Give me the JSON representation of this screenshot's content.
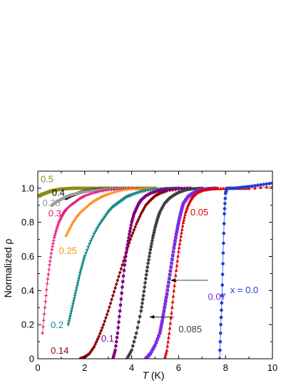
{
  "chart_data": {
    "type": "scatter",
    "xlabel_symbol": "T",
    "xlabel_unit": "(K)",
    "ylabel": "Normalized ρ",
    "xlim": [
      0,
      10
    ],
    "ylim": [
      0,
      1.1
    ],
    "xticks": [
      0,
      2,
      4,
      6,
      8,
      10
    ],
    "yticks": [
      0,
      0.2,
      0.4,
      0.6,
      0.8,
      1.0
    ],
    "xtick_labels": [
      "0",
      "2",
      "4",
      "6",
      "8",
      "10"
    ],
    "ytick_labels": [
      "0",
      "0.2",
      "0.4",
      "0.6",
      "0.8",
      "1.0"
    ],
    "grid": false,
    "series": [
      {
        "name": "0.5",
        "color": "#8b8b1a",
        "marker": "square",
        "x": [
          0.05,
          0.2,
          0.4,
          0.6,
          0.8,
          1.0,
          1.3,
          1.6,
          2.0,
          2.5,
          3.0,
          3.5,
          4.0,
          4.5,
          5.0
        ],
        "y": [
          0.955,
          0.965,
          0.975,
          0.985,
          0.99,
          0.995,
          0.998,
          1.0,
          1.0,
          1.0,
          1.0,
          1.0,
          1.0,
          1.0,
          1.0
        ]
      },
      {
        "name": "0.4",
        "color": "#000000",
        "marker": "circle",
        "x": [
          1.2,
          1.4,
          1.6,
          1.8,
          2.0,
          2.3,
          2.6,
          3.0,
          3.5,
          4.0
        ],
        "y": [
          0.94,
          0.955,
          0.965,
          0.975,
          0.982,
          0.988,
          0.992,
          0.995,
          0.998,
          1.0
        ]
      },
      {
        "name": "0.35",
        "color": "#9a9a9a",
        "marker": "circle",
        "x": [
          0.6,
          0.8,
          1.0,
          1.2,
          1.4,
          1.7,
          2.0,
          2.4,
          2.8,
          3.2,
          3.6,
          4.0
        ],
        "y": [
          0.9,
          0.92,
          0.935,
          0.95,
          0.96,
          0.97,
          0.98,
          0.987,
          0.992,
          0.996,
          0.998,
          1.0
        ]
      },
      {
        "name": "0.3",
        "color": "#e6177a",
        "marker": "plus",
        "x": [
          0.2,
          0.3,
          0.4,
          0.5,
          0.6,
          0.7,
          0.8,
          0.9,
          1.0,
          1.1,
          1.2,
          1.4,
          1.6,
          1.8,
          2.0,
          2.3,
          2.6,
          3.0,
          3.5,
          4.0,
          5.0
        ],
        "y": [
          0.15,
          0.3,
          0.44,
          0.55,
          0.64,
          0.71,
          0.76,
          0.8,
          0.83,
          0.855,
          0.875,
          0.9,
          0.92,
          0.94,
          0.955,
          0.97,
          0.98,
          0.99,
          0.995,
          1.0,
          1.0
        ]
      },
      {
        "name": "0.25",
        "color": "#ff8c1a",
        "marker": "plus",
        "x": [
          1.2,
          1.35,
          1.5,
          1.65,
          1.8,
          2.0,
          2.2,
          2.4,
          2.6,
          2.8,
          3.0,
          3.3,
          3.6,
          4.0,
          4.5,
          5.0
        ],
        "y": [
          0.72,
          0.76,
          0.8,
          0.83,
          0.855,
          0.88,
          0.905,
          0.925,
          0.94,
          0.955,
          0.965,
          0.978,
          0.988,
          0.995,
          0.998,
          1.0
        ]
      },
      {
        "name": "0.2",
        "color": "#128a8a",
        "marker": "triangle-down",
        "x": [
          1.3,
          1.4,
          1.5,
          1.6,
          1.7,
          1.8,
          1.9,
          2.0,
          2.2,
          2.4,
          2.6,
          2.8,
          3.0,
          3.2,
          3.4,
          3.6,
          3.8,
          4.0,
          4.3,
          4.6,
          5.0,
          5.5,
          6.0
        ],
        "y": [
          0.2,
          0.26,
          0.32,
          0.38,
          0.44,
          0.5,
          0.55,
          0.6,
          0.67,
          0.73,
          0.78,
          0.82,
          0.86,
          0.89,
          0.91,
          0.93,
          0.95,
          0.96,
          0.975,
          0.985,
          0.993,
          0.998,
          1.0
        ]
      },
      {
        "name": "0.14",
        "color": "#8b0000",
        "marker": "diamond",
        "x": [
          1.8,
          2.0,
          2.2,
          2.4,
          2.6,
          2.8,
          3.0,
          3.2,
          3.4,
          3.6,
          3.8,
          4.0,
          4.2,
          4.4,
          4.6,
          4.8,
          5.0,
          5.2,
          5.5,
          6.0,
          6.5
        ],
        "y": [
          0.0,
          0.01,
          0.03,
          0.07,
          0.13,
          0.2,
          0.28,
          0.37,
          0.46,
          0.55,
          0.64,
          0.72,
          0.79,
          0.85,
          0.9,
          0.93,
          0.955,
          0.97,
          0.985,
          0.995,
          1.0
        ]
      },
      {
        "name": "0.1",
        "color": "#800080",
        "marker": "circle",
        "x": [
          3.2,
          3.3,
          3.4,
          3.5,
          3.6,
          3.7,
          3.8,
          3.9,
          4.0,
          4.1,
          4.2,
          4.3,
          4.4,
          4.6,
          4.8,
          5.0,
          5.2,
          5.5,
          6.0,
          6.5
        ],
        "y": [
          0.0,
          0.05,
          0.15,
          0.28,
          0.42,
          0.55,
          0.65,
          0.73,
          0.8,
          0.85,
          0.88,
          0.91,
          0.93,
          0.955,
          0.97,
          0.98,
          0.988,
          0.995,
          0.999,
          1.0
        ]
      },
      {
        "name": "0.085",
        "color": "#404040",
        "marker": "circle",
        "x": [
          3.8,
          4.0,
          4.2,
          4.4,
          4.5,
          4.6,
          4.7,
          4.8,
          4.9,
          5.0,
          5.1,
          5.2,
          5.4,
          5.6,
          5.8,
          6.0,
          6.3,
          6.6,
          7.0
        ],
        "y": [
          0.0,
          0.05,
          0.15,
          0.28,
          0.37,
          0.47,
          0.56,
          0.64,
          0.71,
          0.77,
          0.82,
          0.86,
          0.91,
          0.94,
          0.96,
          0.975,
          0.99,
          0.997,
          1.0
        ]
      },
      {
        "name": "0.07",
        "color": "#7b2be0",
        "marker": "square",
        "x": [
          4.6,
          4.8,
          5.0,
          5.2,
          5.3,
          5.4,
          5.5,
          5.6,
          5.7,
          5.8,
          5.9,
          6.0,
          6.1,
          6.2,
          6.4,
          6.6,
          6.8,
          7.0,
          7.3,
          7.6
        ],
        "y": [
          0.0,
          0.03,
          0.08,
          0.15,
          0.22,
          0.3,
          0.38,
          0.47,
          0.56,
          0.65,
          0.73,
          0.8,
          0.86,
          0.91,
          0.95,
          0.97,
          0.985,
          0.993,
          0.998,
          1.0
        ]
      },
      {
        "name": "0.05",
        "color": "#e00000",
        "marker": "triangle-up",
        "x": [
          5.4,
          5.5,
          5.6,
          5.7,
          5.8,
          5.9,
          6.0,
          6.1,
          6.2,
          6.3,
          6.4,
          6.5,
          6.6,
          6.8,
          7.0,
          7.3,
          7.6,
          8.0,
          8.5,
          9.0,
          10.0
        ],
        "y": [
          0.0,
          0.05,
          0.15,
          0.27,
          0.4,
          0.52,
          0.63,
          0.72,
          0.8,
          0.86,
          0.9,
          0.93,
          0.95,
          0.975,
          0.988,
          0.995,
          0.998,
          1.0,
          1.0,
          1.0,
          1.01
        ]
      },
      {
        "name": "x = 0.0",
        "color": "#1a3fd6",
        "marker": "circle",
        "x": [
          7.75,
          7.8,
          7.85,
          7.9,
          7.95,
          8.0,
          8.05,
          8.1,
          8.2,
          8.4,
          8.7,
          9.0,
          9.5,
          10.0
        ],
        "y": [
          0.0,
          0.2,
          0.37,
          0.62,
          0.85,
          0.97,
          0.995,
          1.0,
          1.0,
          1.0,
          1.005,
          1.01,
          1.02,
          1.03
        ]
      }
    ],
    "labels": [
      {
        "text": "0.5",
        "color": "#8b8b1a",
        "x": 0.12,
        "y": 1.035
      },
      {
        "text": "0.4",
        "color": "#000000",
        "x": 0.6,
        "y": 0.955
      },
      {
        "text": "0.35",
        "color": "#9a9a9a",
        "x": 0.2,
        "y": 0.895
      },
      {
        "text": "0.3",
        "color": "#e6177a",
        "x": 0.45,
        "y": 0.835
      },
      {
        "text": "0.25",
        "color": "#ff8c1a",
        "x": 0.9,
        "y": 0.615
      },
      {
        "text": "0.2",
        "color": "#128a8a",
        "x": 0.55,
        "y": 0.18
      },
      {
        "text": "0.14",
        "color": "#8b0000",
        "x": 0.55,
        "y": 0.03
      },
      {
        "text": "0.1",
        "color": "#800080",
        "x": 2.7,
        "y": 0.1
      },
      {
        "text": "0.085",
        "color": "#404040",
        "x": 6.0,
        "y": 0.155
      },
      {
        "text": "0.07",
        "color": "#7b2be0",
        "x": 7.25,
        "y": 0.345
      },
      {
        "text": "0.05",
        "color": "#e00000",
        "x": 6.5,
        "y": 0.84
      },
      {
        "text": "x = 0.0",
        "color": "#1a3fd6",
        "x": 8.2,
        "y": 0.385
      }
    ],
    "arrows": [
      {
        "from": [
          5.8,
          0.245
        ],
        "to": [
          4.75,
          0.245
        ]
      },
      {
        "from": [
          7.25,
          0.46
        ],
        "to": [
          5.65,
          0.46
        ]
      }
    ]
  }
}
